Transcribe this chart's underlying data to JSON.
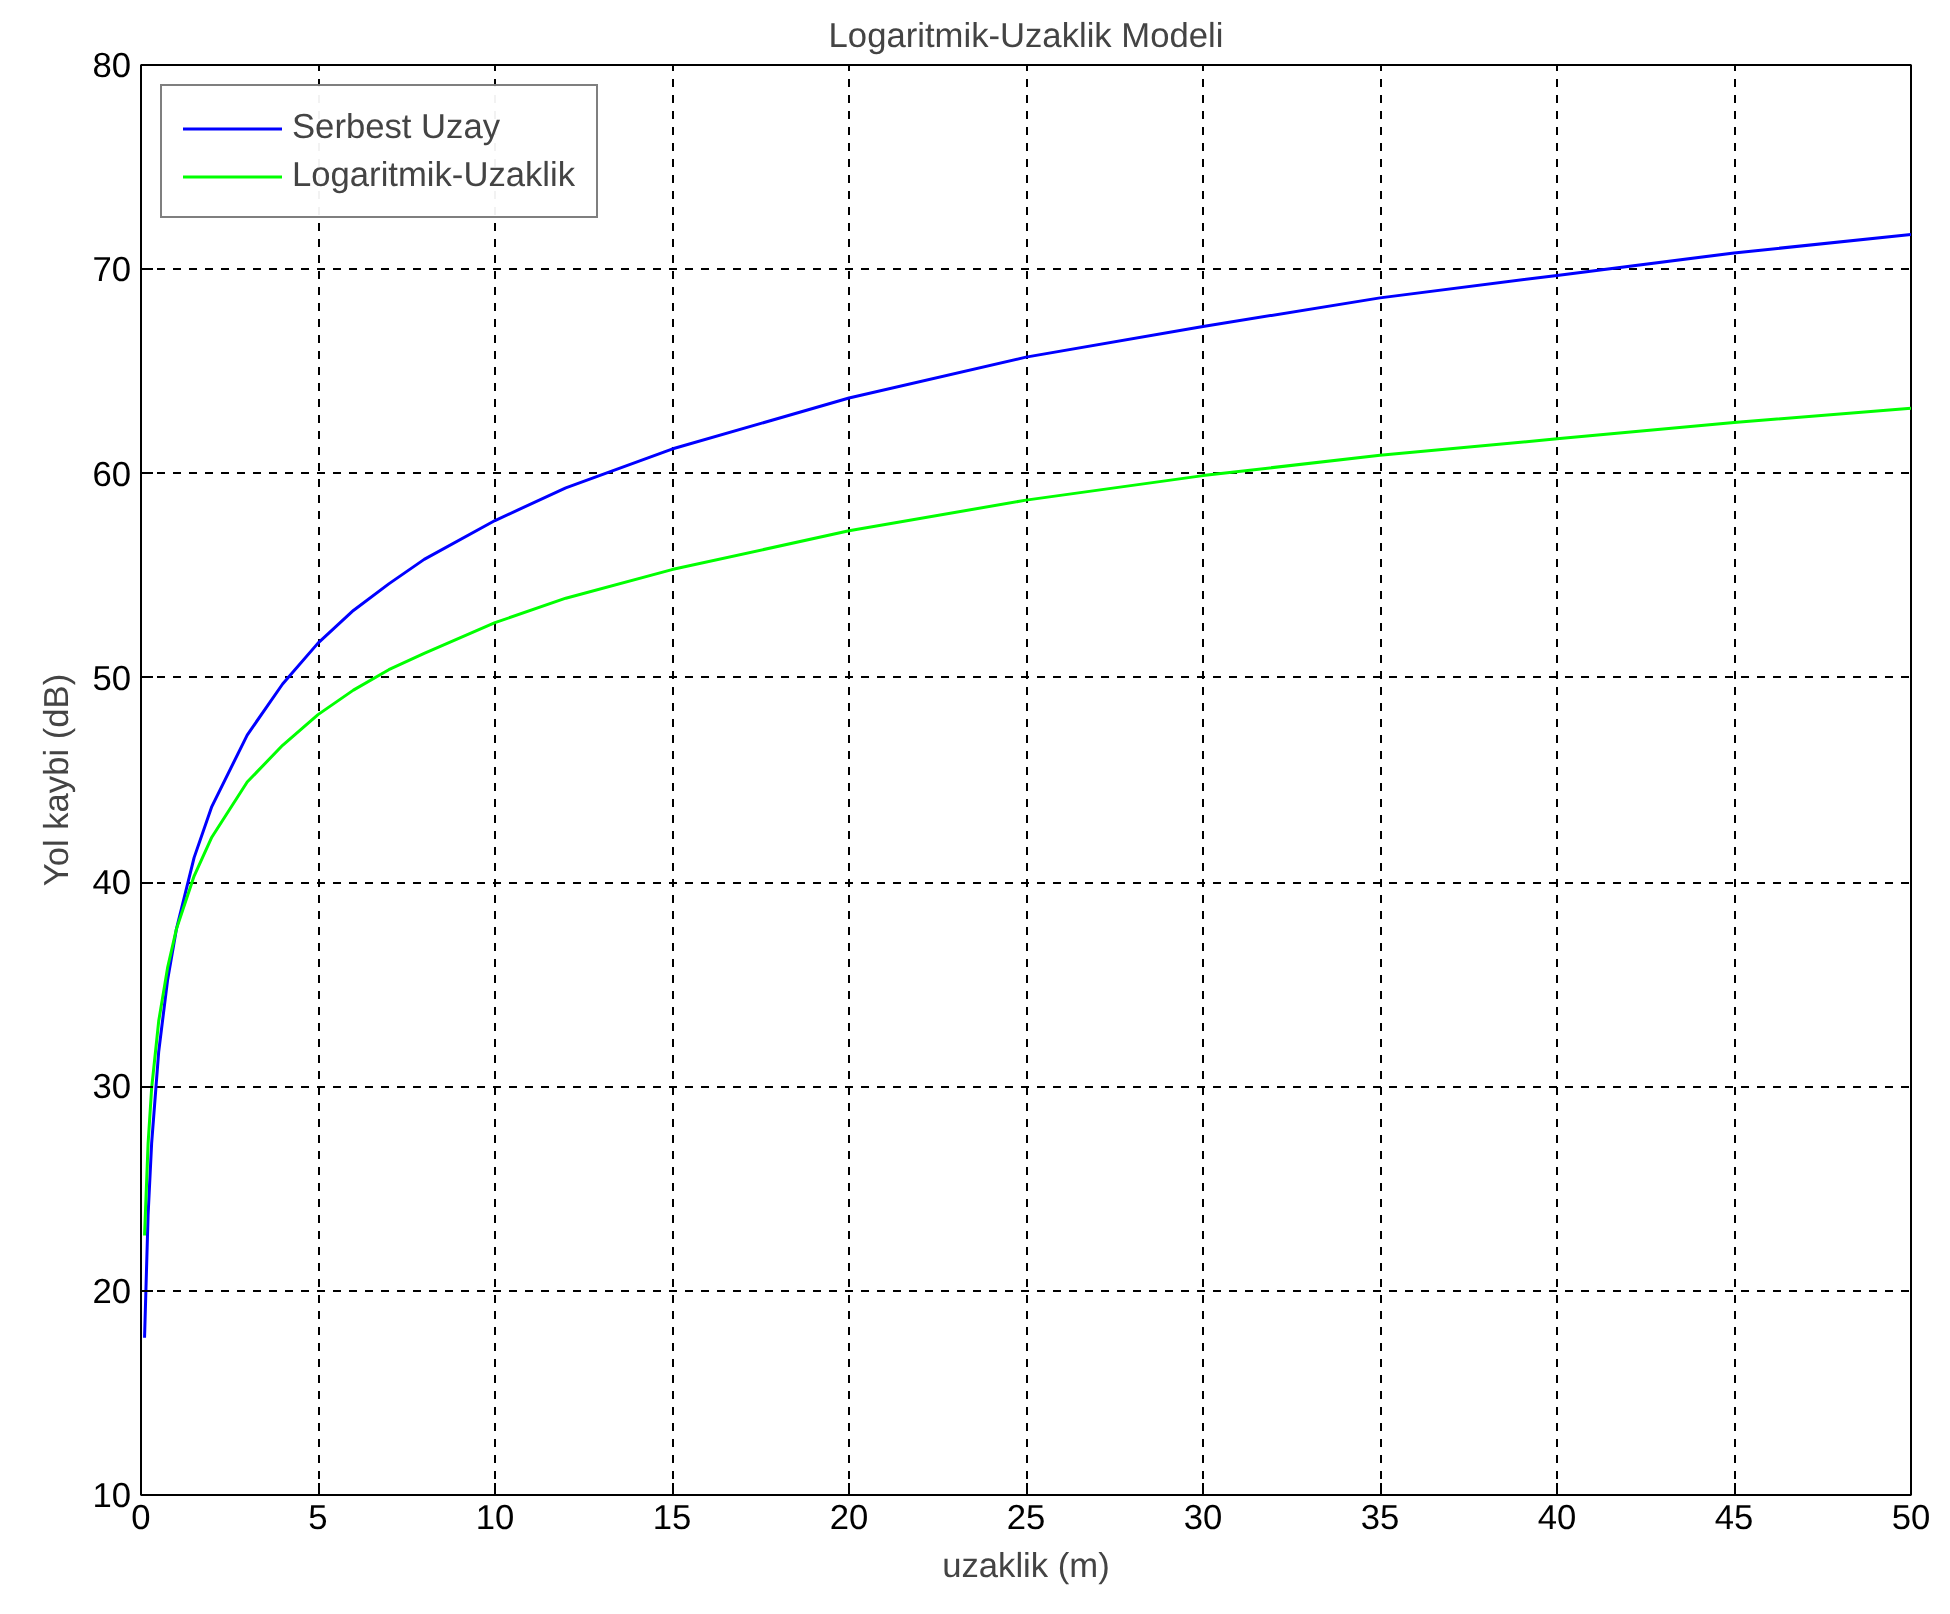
{
  "chart_data": {
    "type": "line",
    "title": "Logaritmik-Uzaklik Modeli",
    "xlabel": "uzaklik (m)",
    "ylabel": "Yol kaybi (dB)",
    "x": [
      0.1,
      0.2,
      0.3,
      0.5,
      0.75,
      1,
      1.5,
      2,
      3,
      4,
      5,
      6,
      7,
      8,
      10,
      12,
      15,
      20,
      25,
      30,
      35,
      40,
      45,
      50
    ],
    "series": [
      {
        "name": "Serbest Uzay",
        "color": "#0000ff",
        "values": [
          17.7,
          23.7,
          27.2,
          31.7,
          35.2,
          37.7,
          41.2,
          43.7,
          47.2,
          49.7,
          51.7,
          53.3,
          54.6,
          55.8,
          57.7,
          59.3,
          61.2,
          63.7,
          65.7,
          67.2,
          68.6,
          69.7,
          70.8,
          71.7
        ]
      },
      {
        "name": "Logaritmik-Uzaklik",
        "color": "#00ff00",
        "values": [
          22.7,
          27.2,
          29.9,
          33.2,
          35.8,
          37.7,
          40.3,
          42.2,
          44.9,
          46.7,
          48.2,
          49.4,
          50.4,
          51.2,
          52.7,
          53.9,
          55.3,
          57.2,
          58.7,
          59.9,
          60.9,
          61.7,
          62.5,
          63.2
        ]
      }
    ],
    "xlim": [
      0,
      50
    ],
    "ylim": [
      10,
      80
    ],
    "xticks": [
      0,
      5,
      10,
      15,
      20,
      25,
      30,
      35,
      40,
      45,
      50
    ],
    "yticks": [
      10,
      20,
      30,
      40,
      50,
      60,
      70,
      80
    ],
    "grid": true,
    "legend": "top left"
  }
}
